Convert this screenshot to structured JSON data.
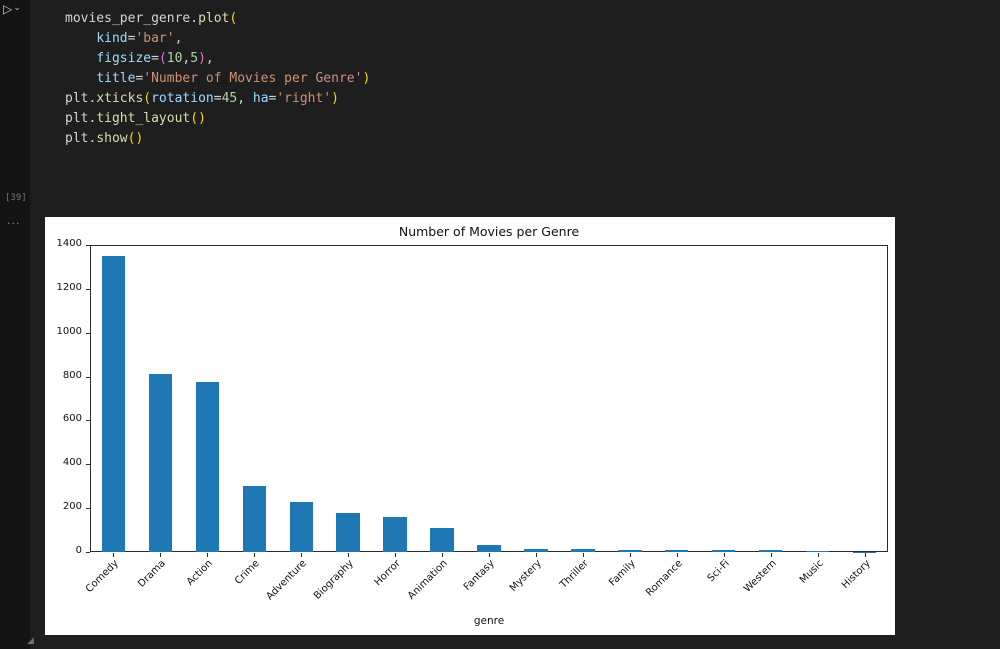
{
  "editor": {
    "run_button_glyph": "▷",
    "run_chevron_glyph": "⌄",
    "execution_count": "[39]",
    "more_indicator": "...",
    "resize_grip_glyph": "◢",
    "code_lines": [
      [
        {
          "t": "movies_per_genre.",
          "c": "plain"
        },
        {
          "t": "plot",
          "c": "func"
        },
        {
          "t": "(",
          "c": "b1"
        }
      ],
      [
        {
          "t": "    ",
          "c": "plain"
        },
        {
          "t": "kind",
          "c": "param"
        },
        {
          "t": "=",
          "c": "plain"
        },
        {
          "t": "'bar'",
          "c": "str"
        },
        {
          "t": ",",
          "c": "plain"
        }
      ],
      [
        {
          "t": "    ",
          "c": "plain"
        },
        {
          "t": "figsize",
          "c": "param"
        },
        {
          "t": "=",
          "c": "plain"
        },
        {
          "t": "(",
          "c": "b2"
        },
        {
          "t": "10",
          "c": "num"
        },
        {
          "t": ",",
          "c": "plain"
        },
        {
          "t": "5",
          "c": "num"
        },
        {
          "t": ")",
          "c": "b2"
        },
        {
          "t": ",",
          "c": "plain"
        }
      ],
      [
        {
          "t": "    ",
          "c": "plain"
        },
        {
          "t": "title",
          "c": "param"
        },
        {
          "t": "=",
          "c": "plain"
        },
        {
          "t": "'Number of Movies per Genre'",
          "c": "str"
        },
        {
          "t": ")",
          "c": "b1"
        }
      ],
      [
        {
          "t": "plt.",
          "c": "plain"
        },
        {
          "t": "xticks",
          "c": "func"
        },
        {
          "t": "(",
          "c": "b1"
        },
        {
          "t": "rotation",
          "c": "param"
        },
        {
          "t": "=",
          "c": "plain"
        },
        {
          "t": "45",
          "c": "num"
        },
        {
          "t": ", ",
          "c": "plain"
        },
        {
          "t": "ha",
          "c": "param"
        },
        {
          "t": "=",
          "c": "plain"
        },
        {
          "t": "'right'",
          "c": "str"
        },
        {
          "t": ")",
          "c": "b1"
        }
      ],
      [
        {
          "t": "plt.",
          "c": "plain"
        },
        {
          "t": "tight_layout",
          "c": "func"
        },
        {
          "t": "(",
          "c": "b1"
        },
        {
          "t": ")",
          "c": "b1"
        }
      ],
      [
        {
          "t": "plt.",
          "c": "plain"
        },
        {
          "t": "show",
          "c": "func"
        },
        {
          "t": "(",
          "c": "b1"
        },
        {
          "t": ")",
          "c": "b1"
        }
      ]
    ]
  },
  "chart_data": {
    "type": "bar",
    "title": "Number of Movies per Genre",
    "xlabel": "genre",
    "ylabel": "",
    "categories": [
      "Comedy",
      "Drama",
      "Action",
      "Crime",
      "Adventure",
      "Biography",
      "Horror",
      "Animation",
      "Fantasy",
      "Mystery",
      "Thriller",
      "Family",
      "Romance",
      "Sci-Fi",
      "Western",
      "Music",
      "History"
    ],
    "values": [
      1350,
      810,
      775,
      300,
      230,
      178,
      160,
      110,
      30,
      15,
      14,
      10,
      10,
      10,
      8,
      3,
      2
    ],
    "ylim": [
      0,
      1400
    ],
    "yticks": [
      0,
      200,
      400,
      600,
      800,
      1000,
      1200,
      1400
    ],
    "bar_color": "#1f77b4",
    "bar_width_fraction": 0.5,
    "grid": false,
    "legend": false,
    "x_tick_rotation": 45
  },
  "colors": {
    "editor_background": "#1e1e1e",
    "gutter_background": "#141414",
    "figure_background": "#ffffff",
    "string_token": "#ce9178",
    "bar_blue": "#1f77b4"
  }
}
